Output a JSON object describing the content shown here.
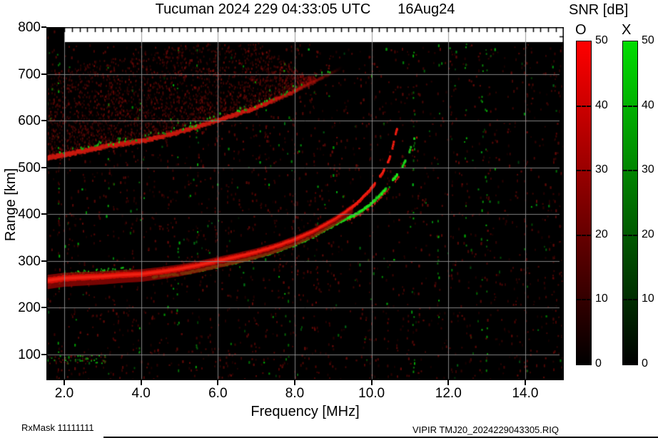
{
  "title": {
    "main": "Tucuman 2024 229 04:33:05 UTC",
    "date": "16Aug24"
  },
  "footer": {
    "left": "RxMask 11111111",
    "right": "VIPIR  TMJ20_2024229043305.RIQ"
  },
  "legend": {
    "title": "SNR [dB]",
    "o_label": "O",
    "x_label": "X",
    "min": 0,
    "max": 50,
    "ticks": [
      50,
      40,
      30,
      20,
      10,
      0
    ],
    "dash_ticks": [
      40,
      30,
      20,
      10
    ]
  },
  "colors": {
    "o_mode": "#ff0000",
    "x_mode": "#00dd00",
    "plot_bg": "#000000",
    "grid": "#919191",
    "band": "#c81810"
  },
  "chart_data": {
    "type": "heatmap",
    "title": "Tucuman 2024 229 04:33:05 UTC 16Aug24",
    "xlabel": "Frequency [MHz]",
    "ylabel": "Range [km]",
    "xlim": [
      1.54,
      15.0
    ],
    "ylim": [
      45,
      800
    ],
    "grid": true,
    "x_ticks": [
      2,
      4,
      6,
      8,
      10,
      12,
      14
    ],
    "x_tick_labels": [
      "2.0",
      "4.0",
      "6.0",
      "8.0",
      "10.0",
      "12.0",
      "14.0"
    ],
    "y_ticks": [
      100,
      200,
      300,
      400,
      500,
      600,
      700,
      800
    ],
    "x_minor_step": 0.2,
    "y_minor_step": 20,
    "colorbar_units": "dB",
    "critical_frequency_o_mhz": 10.6,
    "critical_frequency_x_mhz": 11.1,
    "series": {
      "o_trace": [
        [
          1.54,
          258
        ],
        [
          2,
          263
        ],
        [
          2.5,
          265
        ],
        [
          3,
          267
        ],
        [
          3.5,
          270
        ],
        [
          4,
          272
        ],
        [
          4.5,
          277
        ],
        [
          5,
          283
        ],
        [
          5.5,
          291
        ],
        [
          6,
          300
        ],
        [
          6.5,
          309
        ],
        [
          7,
          319
        ],
        [
          7.5,
          331
        ],
        [
          8,
          346
        ],
        [
          8.5,
          364
        ],
        [
          9,
          387
        ],
        [
          9.3,
          403
        ],
        [
          9.6,
          422
        ],
        [
          9.9,
          447
        ],
        [
          10.1,
          467
        ],
        [
          10.3,
          491
        ],
        [
          10.45,
          516
        ],
        [
          10.55,
          546
        ],
        [
          10.62,
          571
        ],
        [
          10.66,
          584
        ]
      ],
      "x_trace": [
        [
          4.3,
          267
        ],
        [
          5,
          273
        ],
        [
          5.5,
          281
        ],
        [
          6,
          290
        ],
        [
          6.5,
          299
        ],
        [
          7,
          309
        ],
        [
          7.5,
          321
        ],
        [
          8,
          336
        ],
        [
          8.5,
          354
        ],
        [
          9,
          377
        ],
        [
          9.25,
          388
        ],
        [
          9.6,
          401
        ],
        [
          10,
          425
        ],
        [
          10.3,
          449
        ],
        [
          10.6,
          479
        ],
        [
          10.8,
          504
        ],
        [
          10.95,
          529
        ],
        [
          11.05,
          551
        ],
        [
          11.12,
          568
        ]
      ],
      "upper_band": [
        [
          1.54,
          521
        ],
        [
          2,
          528
        ],
        [
          2.5,
          536
        ],
        [
          3,
          545
        ],
        [
          3.5,
          551
        ],
        [
          4,
          557
        ],
        [
          4.5,
          566
        ],
        [
          5,
          577
        ],
        [
          5.5,
          589
        ],
        [
          6,
          602
        ],
        [
          6.5,
          615
        ],
        [
          7,
          629
        ],
        [
          7.5,
          646
        ],
        [
          8,
          664
        ],
        [
          8.5,
          684
        ],
        [
          9,
          705
        ],
        [
          9.2,
          714
        ]
      ],
      "es_patch": {
        "f_range": [
          1.54,
          3.1
        ],
        "km_range": [
          82,
          100
        ]
      },
      "x_upper_specks": {
        "f_range": [
          1.9,
          3.7
        ],
        "km_offset": 12
      }
    }
  }
}
